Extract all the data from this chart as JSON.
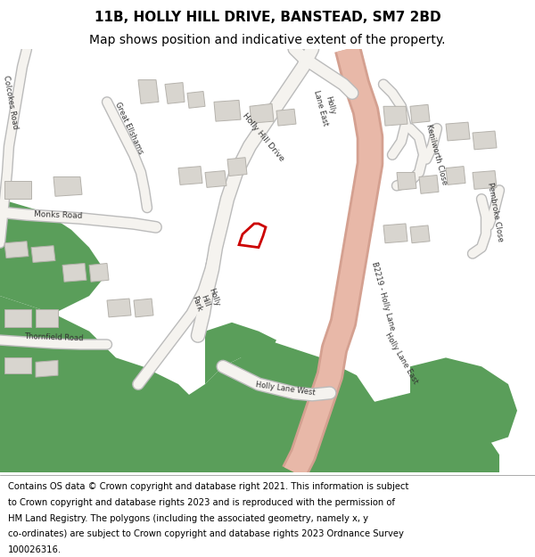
{
  "title_line1": "11B, HOLLY HILL DRIVE, BANSTEAD, SM7 2BD",
  "title_line2": "Map shows position and indicative extent of the property.",
  "footer_lines": [
    "Contains OS data © Crown copyright and database right 2021. This information is subject",
    "to Crown copyright and database rights 2023 and is reproduced with the permission of",
    "HM Land Registry. The polygons (including the associated geometry, namely x, y",
    "co-ordinates) are subject to Crown copyright and database rights 2023 Ordnance Survey",
    "100026316."
  ],
  "title_fontsize": 11,
  "subtitle_fontsize": 10,
  "footer_fontsize": 7.2,
  "map_bg": "#f2efe9",
  "road_color": "#f5f3ef",
  "road_border": "#bbbbbb",
  "building_color": "#d8d5cf",
  "building_edge": "#b5b2ac",
  "green_color": "#5a9e5a",
  "salmon_road_outer": "#d4a090",
  "salmon_road_inner": "#e8b8a8",
  "property_edge": "#cc0000"
}
